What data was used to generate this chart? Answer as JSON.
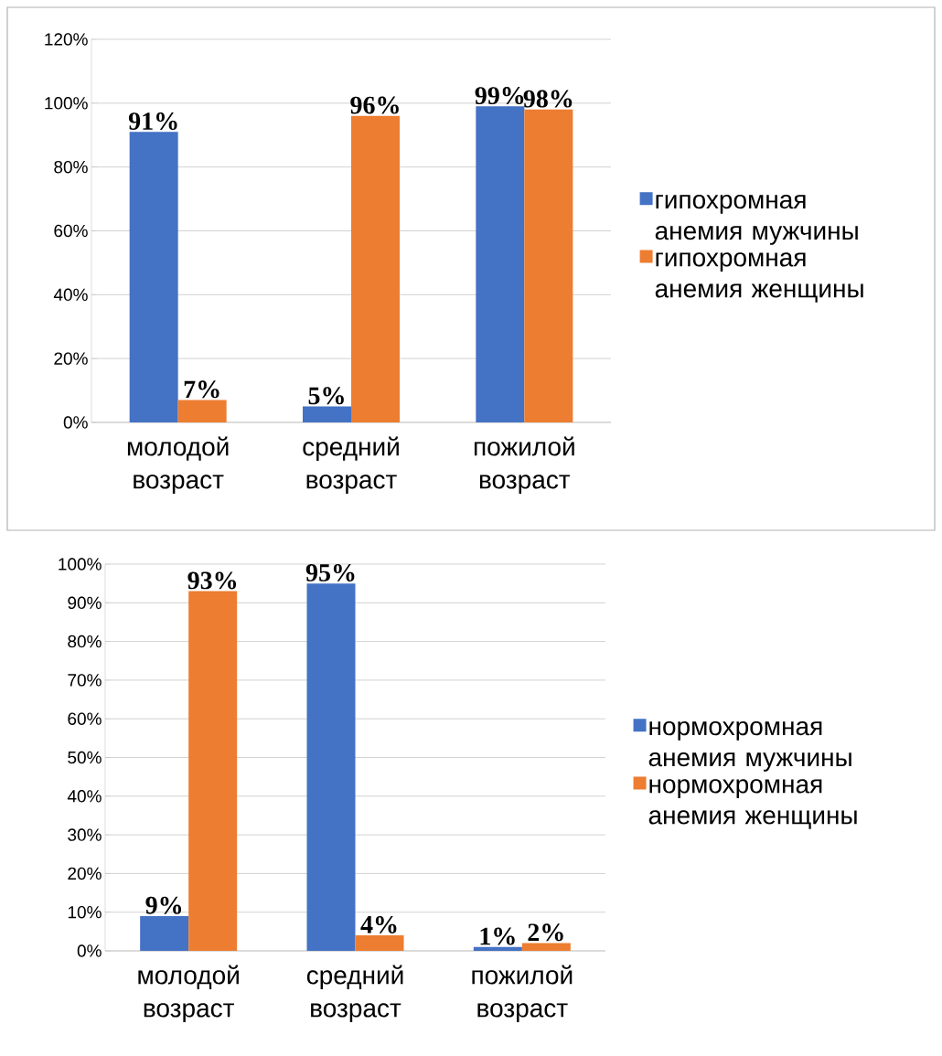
{
  "chart_data": [
    {
      "type": "bar",
      "categories": [
        "молодой возраст",
        "средний возраст",
        "пожилой возраст"
      ],
      "series": [
        {
          "name": "гипохромная анемия мужчины",
          "color": "#4472c4",
          "values": [
            91,
            5,
            99
          ],
          "value_labels": [
            "91%",
            "5%",
            "99%"
          ]
        },
        {
          "name": "гипохромная анемия женщины",
          "color": "#ed7d31",
          "values": [
            7,
            96,
            98
          ],
          "value_labels": [
            "7%",
            "96%",
            "98%"
          ]
        }
      ],
      "ylim": [
        0,
        120
      ],
      "yticks": [
        {
          "value": 0,
          "label": "0%"
        },
        {
          "value": 20,
          "label": "20%"
        },
        {
          "value": 40,
          "label": "40%"
        },
        {
          "value": 60,
          "label": "60%"
        },
        {
          "value": 80,
          "label": "80%"
        },
        {
          "value": 100,
          "label": "100%"
        },
        {
          "value": 120,
          "label": "120%"
        }
      ],
      "grid": "y",
      "legend": "right"
    },
    {
      "type": "bar",
      "categories": [
        "молодой возраст",
        "средний возраст",
        "пожилой возраст"
      ],
      "series": [
        {
          "name": "нормохромная анемия мужчины",
          "color": "#4472c4",
          "values": [
            9,
            95,
            1
          ],
          "value_labels": [
            "9%",
            "95%",
            "1%"
          ]
        },
        {
          "name": "нормохромная анемия женщины",
          "color": "#ed7d31",
          "values": [
            93,
            4,
            2
          ],
          "value_labels": [
            "93%",
            "4%",
            "2%"
          ]
        }
      ],
      "ylim": [
        0,
        100
      ],
      "yticks": [
        {
          "value": 0,
          "label": "0%"
        },
        {
          "value": 10,
          "label": "10%"
        },
        {
          "value": 20,
          "label": "20%"
        },
        {
          "value": 30,
          "label": "30%"
        },
        {
          "value": 40,
          "label": "40%"
        },
        {
          "value": 50,
          "label": "50%"
        },
        {
          "value": 60,
          "label": "60%"
        },
        {
          "value": 70,
          "label": "70%"
        },
        {
          "value": 80,
          "label": "80%"
        },
        {
          "value": 90,
          "label": "90%"
        },
        {
          "value": 100,
          "label": "100%"
        }
      ],
      "grid": "y",
      "legend": "right"
    }
  ]
}
